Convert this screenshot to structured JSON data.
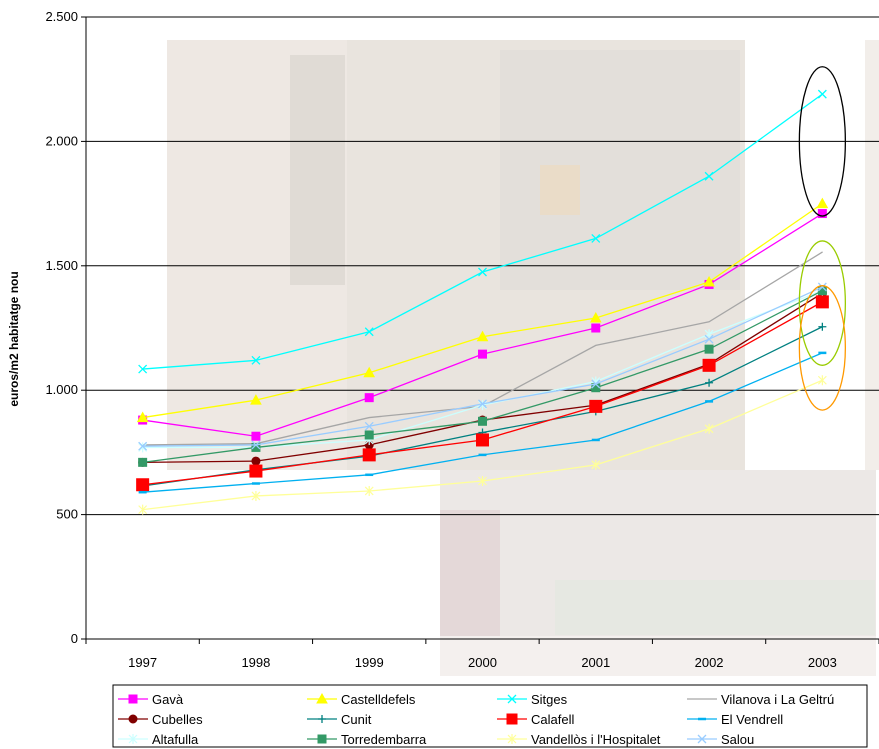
{
  "chart_data": {
    "type": "line",
    "ylabel": "euros/m2 habitatge nou",
    "xlabel": "",
    "title": "",
    "ylim": [
      0,
      2500
    ],
    "yticks": [
      0,
      500,
      1000,
      1500,
      2000,
      2500
    ],
    "ytick_labels": [
      "0",
      "500",
      "1.000",
      "1.500",
      "2.000",
      "2.500"
    ],
    "categories": [
      "1997",
      "1998",
      "1999",
      "2000",
      "2001",
      "2002",
      "2003"
    ],
    "grid": "horizontal major gridlines",
    "legend_position": "bottom",
    "series": [
      {
        "name": "Gavà",
        "color": "#FF00FF",
        "marker": "square",
        "values": [
          880,
          815,
          970,
          1145,
          1250,
          1425,
          1710
        ]
      },
      {
        "name": "Castelldefels",
        "color": "#FFFF00",
        "marker": "triangle",
        "values": [
          890,
          960,
          1070,
          1215,
          1290,
          1435,
          1750
        ]
      },
      {
        "name": "Sitges",
        "color": "#00FFFF",
        "marker": "x",
        "values": [
          1085,
          1120,
          1235,
          1475,
          1610,
          1860,
          2190
        ]
      },
      {
        "name": "Vilanova i La Geltrú",
        "color": "#A6A6A6",
        "marker": "line",
        "values": [
          780,
          785,
          890,
          935,
          1180,
          1275,
          1555
        ]
      },
      {
        "name": "Cubelles",
        "color": "#800000",
        "marker": "circle",
        "values": [
          710,
          715,
          780,
          880,
          940,
          1105,
          1390
        ]
      },
      {
        "name": "Cunit",
        "color": "#008080",
        "marker": "plus",
        "values": [
          615,
          680,
          735,
          830,
          915,
          1030,
          1255
        ]
      },
      {
        "name": "Calafell",
        "color": "#FF0000",
        "marker": "square",
        "values": [
          620,
          675,
          740,
          800,
          935,
          1100,
          1355
        ]
      },
      {
        "name": "El Vendrell",
        "color": "#00B0F0",
        "marker": "dash",
        "values": [
          590,
          625,
          660,
          740,
          800,
          955,
          1150
        ]
      },
      {
        "name": "Altafulla",
        "color": "#CCFFFF",
        "marker": "star",
        "values": [
          770,
          770,
          800,
          940,
          1035,
          1225,
          1400
        ]
      },
      {
        "name": "Torredembarra",
        "color": "#339966",
        "marker": "square",
        "values": [
          710,
          770,
          820,
          875,
          1010,
          1165,
          1400
        ]
      },
      {
        "name": "Vandellòs i l'Hospitalet",
        "color": "#FFFF99",
        "marker": "star",
        "values": [
          520,
          575,
          595,
          635,
          700,
          845,
          1040
        ]
      },
      {
        "name": "Salou",
        "color": "#99CCFF",
        "marker": "x",
        "values": [
          775,
          780,
          855,
          945,
          1025,
          1205,
          1415
        ]
      }
    ],
    "annotations": [
      {
        "shape": "ellipse",
        "color": "#000000",
        "around_year": "2003",
        "y_range": [
          1700,
          2300
        ]
      },
      {
        "shape": "ellipse",
        "color": "#99CC00",
        "around_year": "2003",
        "y_range": [
          1100,
          1600
        ]
      },
      {
        "shape": "ellipse",
        "color": "#FF9900",
        "around_year": "2003",
        "y_range": [
          920,
          1420
        ]
      }
    ]
  }
}
